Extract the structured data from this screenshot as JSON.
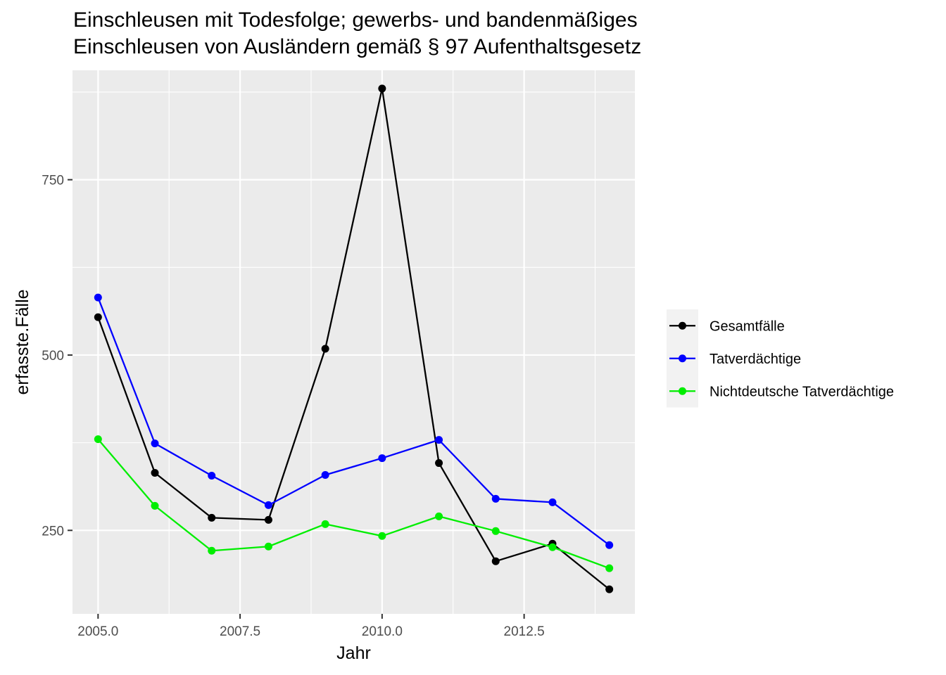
{
  "chart_data": {
    "type": "line",
    "title_lines": [
      "Einschleusen mit Todesfolge; gewerbs- und bandenmäßiges",
      "Einschleusen von Ausländern gemäß § 97 Aufenthaltsgesetz"
    ],
    "xlabel": "Jahr",
    "ylabel": "erfasste.Fälle",
    "x": [
      2005,
      2006,
      2007,
      2008,
      2009,
      2010,
      2011,
      2012,
      2013,
      2014
    ],
    "xlim": [
      2004.55,
      2014.45
    ],
    "ylim": [
      131,
      906
    ],
    "x_ticks": [
      2005.0,
      2007.5,
      2010.0,
      2012.5
    ],
    "x_tick_labels": [
      "2005.0",
      "2007.5",
      "2010.0",
      "2012.5"
    ],
    "y_ticks": [
      250,
      500,
      750
    ],
    "y_tick_labels": [
      "250",
      "500",
      "750"
    ],
    "grid": true,
    "legend_position": "right",
    "series": [
      {
        "name": "Gesamtfälle",
        "color": "#000000",
        "values": [
          554,
          332,
          268,
          265,
          509,
          880,
          346,
          206,
          231,
          166
        ]
      },
      {
        "name": "Tatverdächtige",
        "color": "#0000ff",
        "values": [
          582,
          374,
          328,
          286,
          329,
          353,
          379,
          295,
          290,
          229
        ]
      },
      {
        "name": "Nichtdeutsche Tatverdächtige",
        "color": "#00ee00",
        "values": [
          380,
          285,
          221,
          227,
          259,
          242,
          270,
          249,
          226,
          196
        ]
      }
    ]
  }
}
